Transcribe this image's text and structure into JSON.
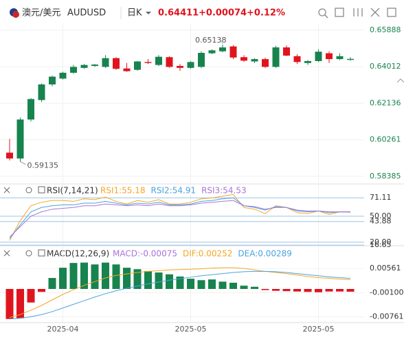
{
  "header": {
    "pair": "澳元/美元",
    "symbol": "AUDUSD",
    "period": "日K",
    "price": "0.64411",
    "change": "+0.00074",
    "change_pct": "+0.12%"
  },
  "chart_data": [
    {
      "type": "candlestick",
      "up_color": "#17834e",
      "down_color": "#e0141e",
      "open": [
        0.596,
        0.593,
        0.613,
        0.623,
        0.631,
        0.634,
        0.637,
        0.6395,
        0.6405,
        0.64,
        0.6445,
        0.6392,
        0.6385,
        0.6425,
        0.641,
        0.645,
        0.6405,
        0.6395,
        0.64,
        0.647,
        0.648,
        0.6505,
        0.645,
        0.6428,
        0.644,
        0.64,
        0.65,
        0.6455,
        0.642,
        0.643,
        0.647,
        0.644,
        0.6436
      ],
      "high": [
        0.603,
        0.614,
        0.624,
        0.6315,
        0.6355,
        0.6375,
        0.641,
        0.6415,
        0.6415,
        0.646,
        0.645,
        0.642,
        0.643,
        0.644,
        0.646,
        0.6455,
        0.6415,
        0.643,
        0.648,
        0.649,
        0.65138,
        0.6512,
        0.646,
        0.6445,
        0.6448,
        0.6508,
        0.651,
        0.6465,
        0.6435,
        0.649,
        0.648,
        0.647,
        0.645
      ],
      "low": [
        0.592,
        0.59135,
        0.612,
        0.622,
        0.63,
        0.6335,
        0.6365,
        0.639,
        0.64,
        0.6395,
        0.6385,
        0.6375,
        0.638,
        0.6415,
        0.6405,
        0.6395,
        0.638,
        0.639,
        0.6395,
        0.6465,
        0.6475,
        0.644,
        0.6425,
        0.642,
        0.6395,
        0.6395,
        0.6455,
        0.6415,
        0.641,
        0.6425,
        0.642,
        0.6435,
        0.6432
      ],
      "close": [
        0.593,
        0.613,
        0.6235,
        0.631,
        0.635,
        0.637,
        0.64,
        0.641,
        0.6412,
        0.6445,
        0.639,
        0.6378,
        0.6428,
        0.642,
        0.6452,
        0.64,
        0.6395,
        0.6425,
        0.6472,
        0.6485,
        0.65,
        0.6448,
        0.6432,
        0.644,
        0.64,
        0.65,
        0.6458,
        0.6425,
        0.643,
        0.6478,
        0.644,
        0.6455,
        0.64411
      ],
      "annotations": {
        "high": "0.65138",
        "low": "0.59135"
      },
      "ylim": [
        0.581,
        0.662
      ],
      "yticks": [
        {
          "value": 0.65888,
          "label": "0.65888"
        },
        {
          "value": 0.64012,
          "label": "0.64012"
        },
        {
          "value": 0.62136,
          "label": "0.62136"
        },
        {
          "value": 0.60261,
          "label": "0.60261"
        },
        {
          "value": 0.58385,
          "label": "0.58385"
        }
      ],
      "tick_color": "#17834e"
    },
    {
      "type": "line",
      "title": "RSI(7,14,21)",
      "series": [
        {
          "name": "RSI1:55.18",
          "color": "#f5a623",
          "values": [
            22,
            45,
            62,
            66,
            68,
            68,
            67,
            70,
            69,
            72,
            67,
            64,
            68,
            66,
            69,
            64,
            64,
            66,
            70,
            71,
            73,
            75,
            60,
            58,
            53,
            62,
            60,
            54,
            53,
            56,
            52,
            55,
            55.18
          ]
        },
        {
          "name": "RSI2:54.91",
          "color": "#4aa3df",
          "values": [
            24,
            40,
            55,
            60,
            62,
            63,
            63,
            65,
            65,
            67,
            65,
            63,
            65,
            64,
            66,
            63,
            63,
            64,
            67,
            68,
            70,
            71,
            62,
            60,
            57,
            61,
            60,
            56,
            55,
            56,
            54,
            55,
            54.91
          ]
        },
        {
          "name": "RSI3:54.53",
          "color": "#a874d8",
          "values": [
            26,
            38,
            50,
            55,
            58,
            59,
            60,
            62,
            62,
            64,
            63,
            62,
            63,
            62,
            64,
            62,
            62,
            63,
            65,
            66,
            67,
            68,
            62,
            61,
            58,
            60,
            60,
            57,
            56,
            56,
            55,
            55,
            54.53
          ]
        }
      ],
      "ylim": [
        16,
        78
      ],
      "yticks": [
        71.11,
        {
          "value": 50,
          "label": "50.00"
        },
        43.88,
        16.65,
        {
          "value": 20,
          "label": "20.00"
        }
      ],
      "tick_color": "#333333"
    },
    {
      "type": "macd",
      "title": "MACD(12,26,9)",
      "up_color": "#17834e",
      "down_color": "#e0141e",
      "histogram": {
        "name": "MACD:-0.00075",
        "color": "#a874d8",
        "values": [
          -0.0082,
          -0.008,
          -0.0037,
          -0.0008,
          0.003,
          0.0058,
          0.0071,
          0.0072,
          0.0067,
          0.0072,
          0.0067,
          0.0058,
          0.0054,
          0.0049,
          0.0045,
          0.004,
          0.0034,
          0.0028,
          0.0024,
          0.0026,
          0.002,
          0.0017,
          0.0009,
          0.0006,
          -0.0003,
          -0.0005,
          -0.0006,
          -0.0007,
          -0.0008,
          -0.0009,
          -0.0007,
          -0.0007,
          -0.00075
        ]
      },
      "series": [
        {
          "name": "DIF:0.00252",
          "color": "#f5a623",
          "values": [
            -0.0078,
            -0.007,
            -0.0058,
            -0.0045,
            -0.003,
            -0.0015,
            -0.0002,
            0.001,
            0.002,
            0.003,
            0.0037,
            0.0041,
            0.0045,
            0.0048,
            0.005,
            0.0052,
            0.0053,
            0.0054,
            0.0055,
            0.0057,
            0.0058,
            0.0058,
            0.0056,
            0.0052,
            0.0048,
            0.0045,
            0.0042,
            0.0038,
            0.0034,
            0.0031,
            0.0029,
            0.0027,
            0.00252
          ]
        },
        {
          "name": "DEA:0.00289",
          "color": "#4aa3df",
          "values": [
            -0.0082,
            -0.008,
            -0.0076,
            -0.007,
            -0.0062,
            -0.0052,
            -0.0042,
            -0.0032,
            -0.0022,
            -0.0013,
            -0.0005,
            0.0002,
            0.0008,
            0.0014,
            0.0019,
            0.0024,
            0.0028,
            0.0032,
            0.0036,
            0.0039,
            0.0042,
            0.0045,
            0.0047,
            0.0048,
            0.0048,
            0.0047,
            0.0045,
            0.0042,
            0.0039,
            0.0036,
            0.0033,
            0.0031,
            0.00289
          ]
        }
      ],
      "ylim": [
        -0.009,
        0.0075
      ],
      "yticks": [
        {
          "value": 0.00561,
          "label": "0.00561"
        },
        {
          "value": -0.001,
          "label": "-0.00100"
        },
        {
          "value": -0.00761,
          "label": "-0.00761"
        }
      ],
      "tick_color": "#333333"
    }
  ],
  "categories": [
    null,
    null,
    null,
    null,
    null,
    "2025-04",
    null,
    null,
    null,
    null,
    null,
    null,
    null,
    null,
    null,
    null,
    null,
    "2025-05",
    null,
    null,
    null,
    null,
    null,
    null,
    null,
    null,
    null,
    null,
    null,
    "2025-05",
    null,
    null,
    null
  ]
}
